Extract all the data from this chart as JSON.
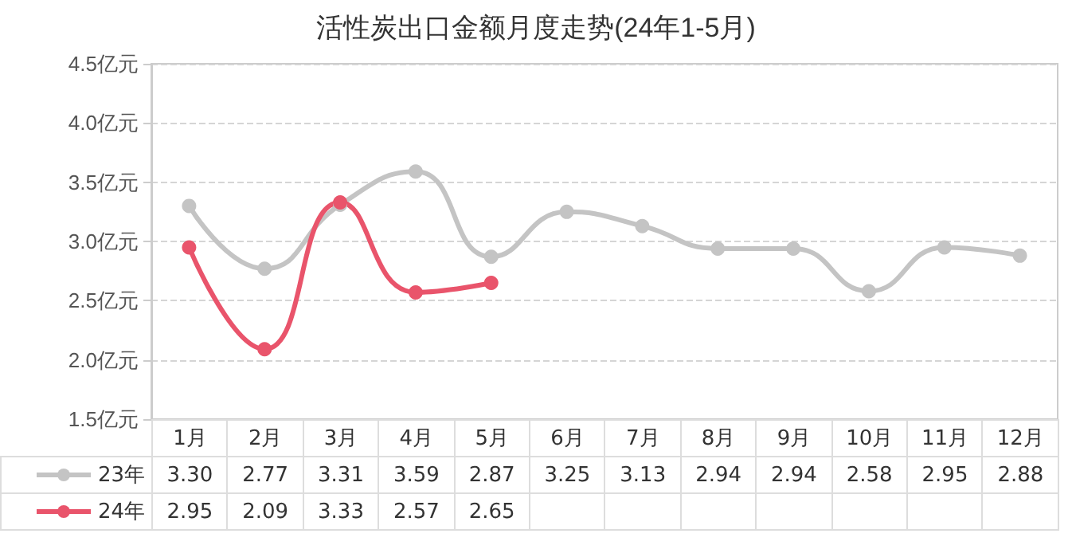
{
  "chart_data": {
    "type": "line",
    "title": "活性炭出口金额月度走势(24年1-5月)",
    "categories": [
      "1月",
      "2月",
      "3月",
      "4月",
      "5月",
      "6月",
      "7月",
      "8月",
      "9月",
      "10月",
      "11月",
      "12月"
    ],
    "series": [
      {
        "name": "23年",
        "color": "#c4c4c4",
        "values": [
          3.3,
          2.77,
          3.31,
          3.59,
          2.87,
          3.25,
          3.13,
          2.94,
          2.94,
          2.58,
          2.95,
          2.88
        ],
        "value_labels": [
          "3.30",
          "2.77",
          "3.31",
          "3.59",
          "2.87",
          "3.25",
          "3.13",
          "2.94",
          "2.94",
          "2.58",
          "2.95",
          "2.88"
        ]
      },
      {
        "name": "24年",
        "color": "#e9546b",
        "values": [
          2.95,
          2.09,
          3.33,
          2.57,
          2.65,
          null,
          null,
          null,
          null,
          null,
          null,
          null
        ],
        "value_labels": [
          "2.95",
          "2.09",
          "3.33",
          "2.57",
          "2.65",
          null,
          null,
          null,
          null,
          null,
          null,
          null
        ]
      }
    ],
    "ylim": [
      1.5,
      4.5
    ],
    "yticks": [
      {
        "value": 1.5,
        "label": "1.5亿元"
      },
      {
        "value": 2.0,
        "label": "2.0亿元"
      },
      {
        "value": 2.5,
        "label": "2.5亿元"
      },
      {
        "value": 3.0,
        "label": "3.0亿元"
      },
      {
        "value": 3.5,
        "label": "3.5亿元"
      },
      {
        "value": 4.0,
        "label": "4.0亿元"
      },
      {
        "value": 4.5,
        "label": "4.5亿元"
      }
    ],
    "grid": "y",
    "legend": "bottom left",
    "marker": "circle",
    "line_style": "solid"
  }
}
